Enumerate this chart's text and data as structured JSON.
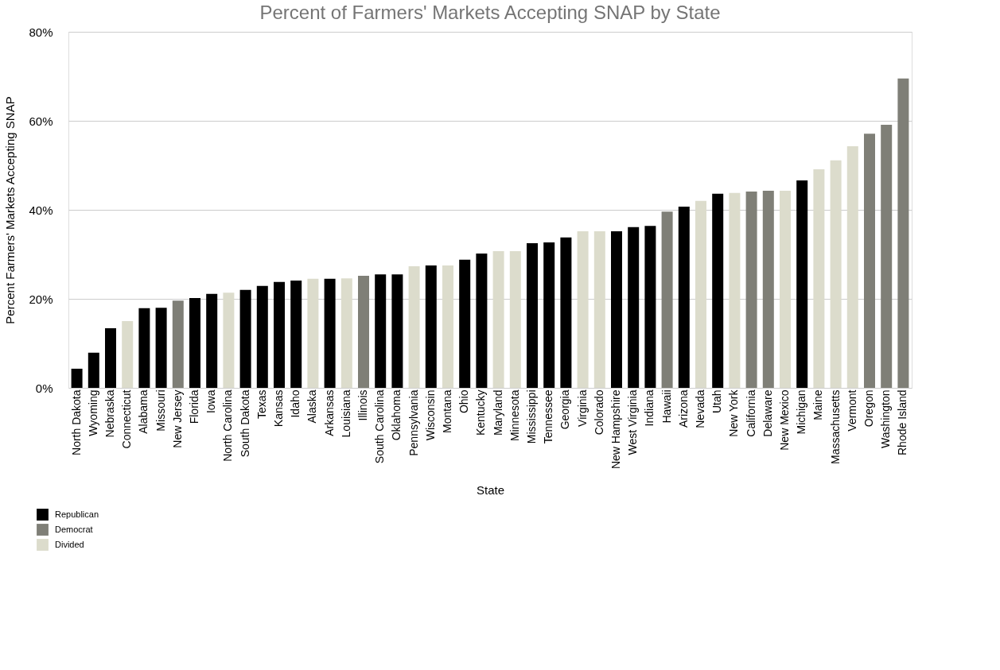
{
  "chart_data": {
    "type": "bar",
    "title": "Percent of Farmers' Markets Accepting SNAP by State",
    "xlabel": "State",
    "ylabel": "Percent Farmers' Markets Accepting SNAP",
    "categories": [
      "North Dakota",
      "Wyoming",
      "Nebraska",
      "Connecticut",
      "Alabama",
      "Missouri",
      "New Jersey",
      "Florida",
      "Iowa",
      "North Carolina",
      "South Dakota",
      "Texas",
      "Kansas",
      "Idaho",
      "Alaska",
      "Arkansas",
      "Louisiana",
      "Illinois",
      "South Carolina",
      "Oklahoma",
      "Pennsylvania",
      "Wisconsin",
      "Montana",
      "Ohio",
      "Kentucky",
      "Maryland",
      "Minnesota",
      "Mississippi",
      "Tennessee",
      "Georgia",
      "Virginia",
      "Colorado",
      "New Hampshire",
      "West Virginia",
      "Indiana",
      "Hawaii",
      "Arizona",
      "Nevada",
      "Utah",
      "New York",
      "California",
      "Delaware",
      "New Mexico",
      "Michigan",
      "Maine",
      "Massachusetts",
      "Vermont",
      "Oregon",
      "Washington",
      "Rhode Island"
    ],
    "series": [
      {
        "name": "Republican",
        "color": "#000000",
        "values": [
          4.3,
          7.9,
          13.4,
          null,
          17.9,
          18.0,
          null,
          20.2,
          21.1,
          null,
          22.0,
          22.9,
          23.8,
          24.1,
          null,
          24.5,
          null,
          null,
          25.5,
          25.5,
          null,
          27.5,
          null,
          28.8,
          30.2,
          null,
          null,
          32.5,
          32.7,
          33.8,
          null,
          null,
          35.2,
          36.1,
          36.4,
          null,
          40.7,
          null,
          43.6,
          null,
          null,
          null,
          null,
          46.6,
          null,
          null,
          null,
          null,
          null,
          null
        ]
      },
      {
        "name": "Democrat",
        "color": "#7f7f77",
        "values": [
          null,
          null,
          null,
          null,
          null,
          null,
          19.6,
          null,
          null,
          null,
          null,
          null,
          null,
          null,
          null,
          null,
          null,
          25.2,
          null,
          null,
          null,
          null,
          null,
          null,
          null,
          null,
          null,
          null,
          null,
          null,
          null,
          null,
          null,
          null,
          null,
          39.6,
          null,
          null,
          null,
          null,
          44.1,
          44.3,
          null,
          null,
          null,
          null,
          null,
          57.1,
          59.1,
          69.5
        ]
      },
      {
        "name": "Divided",
        "color": "#dcdccc",
        "values": [
          null,
          null,
          null,
          15.0,
          null,
          null,
          null,
          null,
          null,
          21.4,
          null,
          null,
          null,
          null,
          24.5,
          null,
          24.6,
          null,
          null,
          null,
          27.3,
          null,
          27.5,
          null,
          null,
          30.7,
          30.7,
          null,
          null,
          null,
          35.2,
          35.2,
          null,
          null,
          null,
          null,
          null,
          42.0,
          null,
          43.8,
          null,
          null,
          44.3,
          null,
          49.1,
          51.1,
          54.3,
          null,
          null,
          null
        ]
      }
    ],
    "ylim": [
      0,
      80
    ],
    "yticks": [
      {
        "value": 0,
        "label": "0%"
      },
      {
        "value": 20,
        "label": "20%"
      },
      {
        "value": 40,
        "label": "40%"
      },
      {
        "value": 60,
        "label": "60%"
      },
      {
        "value": 80,
        "label": "80%"
      }
    ],
    "grid": "y",
    "legend": "bottom left"
  }
}
